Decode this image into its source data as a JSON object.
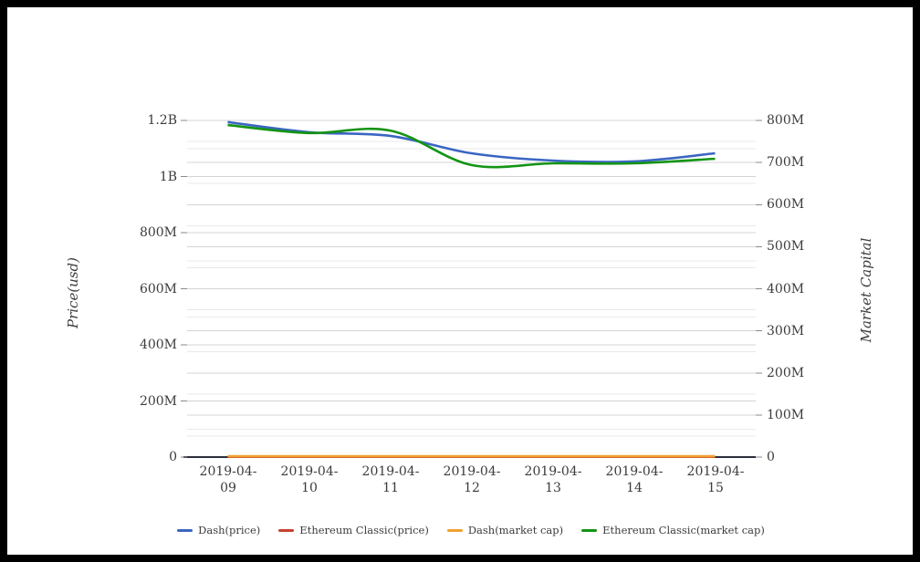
{
  "chart_data": {
    "type": "line",
    "title": "",
    "x_dates": [
      "2019-04-09",
      "2019-04-10",
      "2019-04-11",
      "2019-04-12",
      "2019-04-13",
      "2019-04-14",
      "2019-04-15"
    ],
    "y_left": {
      "label": "Price(usd)",
      "max_musd": 1200,
      "tick_labels": [
        "1.2B",
        "1B",
        "800M",
        "600M",
        "400M",
        "200M",
        "0"
      ],
      "tick_values_musd": [
        1200,
        1000,
        800,
        600,
        400,
        200,
        0
      ],
      "minor_gridline_values_musd": [
        1100,
        900,
        700,
        500,
        300,
        100
      ]
    },
    "y_right": {
      "label": "Market Capital",
      "max_musd": 800,
      "tick_labels": [
        "800M",
        "700M",
        "600M",
        "500M",
        "400M",
        "300M",
        "200M",
        "100M",
        "0"
      ],
      "tick_values_musd": [
        800,
        700,
        600,
        500,
        400,
        300,
        200,
        100,
        0
      ],
      "minor_gridline_values_musd": [
        750,
        650,
        550,
        450,
        350,
        250,
        150,
        50
      ]
    },
    "series": [
      {
        "name": "Dash(price)",
        "axis": "left",
        "color": "#3a66c2",
        "values_musd": [
          1194,
          1158,
          1145,
          1083,
          1057,
          1054,
          1083
        ]
      },
      {
        "name": "Ethereum Classic(price)",
        "axis": "left",
        "color": "#c6432d",
        "values_musd": [
          1,
          1,
          1,
          1,
          1,
          1,
          1
        ]
      },
      {
        "name": "Dash(market cap)",
        "axis": "right",
        "color": "#f0a02f",
        "values_musd": [
          2,
          2,
          2,
          2,
          2,
          2,
          2
        ]
      },
      {
        "name": "Ethereum Classic(market cap)",
        "axis": "right",
        "color": "#149414",
        "values_musd": [
          789,
          770,
          776,
          694,
          698,
          698,
          709
        ]
      }
    ],
    "legend_position": "bottom",
    "grid": true
  },
  "style": {
    "grid_major": "#d4d4d4",
    "grid_minor": "#e9e9e9",
    "axis_line": "#2b2e3a",
    "tick_mark": "#8a8a8a",
    "text": "#3c3c3c",
    "background": "#ffffff",
    "frame": "#000000"
  }
}
